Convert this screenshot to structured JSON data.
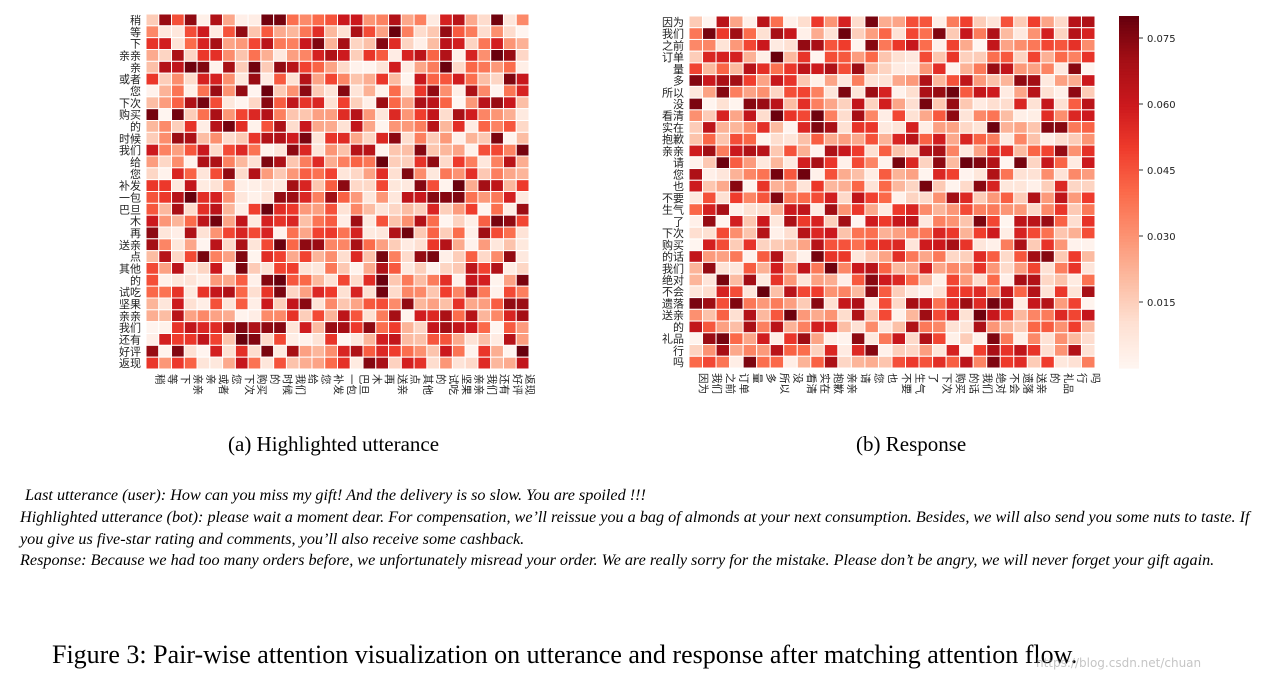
{
  "chart_data": [
    {
      "type": "heatmap",
      "subcaption": "(a) Highlighted utterance",
      "y_labels": [
        "稍",
        "等",
        "下",
        "亲亲",
        "亲",
        "或者",
        "您",
        "下次",
        "购买",
        "的",
        "时候",
        "我们",
        "给",
        "您",
        "补发",
        "一包",
        "巴旦",
        "木",
        "再",
        "送亲",
        "点",
        "其他",
        "的",
        "试吃",
        "坚果",
        "亲亲",
        "我们",
        "还有",
        "好评",
        "返现"
      ],
      "x_labels": [
        "稍",
        "等",
        "下",
        "亲亲",
        "亲",
        "或者",
        "您",
        "下次",
        "购买",
        "的",
        "时候",
        "我们",
        "给",
        "您",
        "补发",
        "一包",
        "巴旦",
        "木",
        "再",
        "送亲",
        "点",
        "其他",
        "的",
        "试吃",
        "坚果",
        "亲亲",
        "我们",
        "还有",
        "好评",
        "返现"
      ],
      "seed": 7
    },
    {
      "type": "heatmap",
      "subcaption": "(b) Response",
      "y_labels": [
        "因为",
        "我们",
        "之前",
        "订单",
        "量",
        "多",
        "所以",
        "没",
        "看清",
        "实在",
        "抱歉",
        "亲亲",
        "请",
        "您",
        "也",
        "不要",
        "生气",
        "了",
        "下次",
        "购买",
        "的话",
        "我们",
        "绝对",
        "不会",
        "遗落",
        "送亲",
        "的",
        "礼品",
        "行",
        "吗"
      ],
      "x_labels": [
        "因为",
        "我们",
        "之前",
        "订单",
        "量",
        "多",
        "所以",
        "没",
        "看清",
        "实在",
        "抱歉",
        "亲亲",
        "请",
        "您",
        "也",
        "不要",
        "生气",
        "了",
        "下次",
        "购买",
        "的话",
        "我们",
        "绝对",
        "不会",
        "遗落",
        "送亲",
        "的",
        "礼品",
        "行",
        "吗"
      ],
      "colorbar": {
        "ticks": [
          0.015,
          0.03,
          0.045,
          0.06,
          0.075
        ],
        "tick_labels": [
          "0.015",
          "0.030",
          "0.045",
          "0.060",
          "0.075"
        ],
        "range": [
          0.0,
          0.08
        ]
      },
      "seed": 19
    }
  ],
  "text": {
    "last_utterance": "Last utterance (user): How can you miss my gift! And the delivery is so slow. You are spoiled !!!",
    "highlighted_utterance": "Highlighted utterance (bot): please wait a moment dear. For compensation, we’ll reissue you a bag of almonds at your next consumption. Besides, we will also send you some nuts to taste. If you give us five-star rating and comments, you’ll also receive some cashback.",
    "response": "Response: Because we had too many orders before, we unfortunately misread your order. We are really sorry for the mistake. Please don’t be angry, we will never forget your gift again.",
    "figure_caption": "Figure 3: Pair-wise attention visualization on utterance and response after matching attention flow.",
    "watermark": "https://blog.csdn.net/chuan"
  },
  "colors": {
    "low": "#fff5f0",
    "high": "#67000d"
  }
}
